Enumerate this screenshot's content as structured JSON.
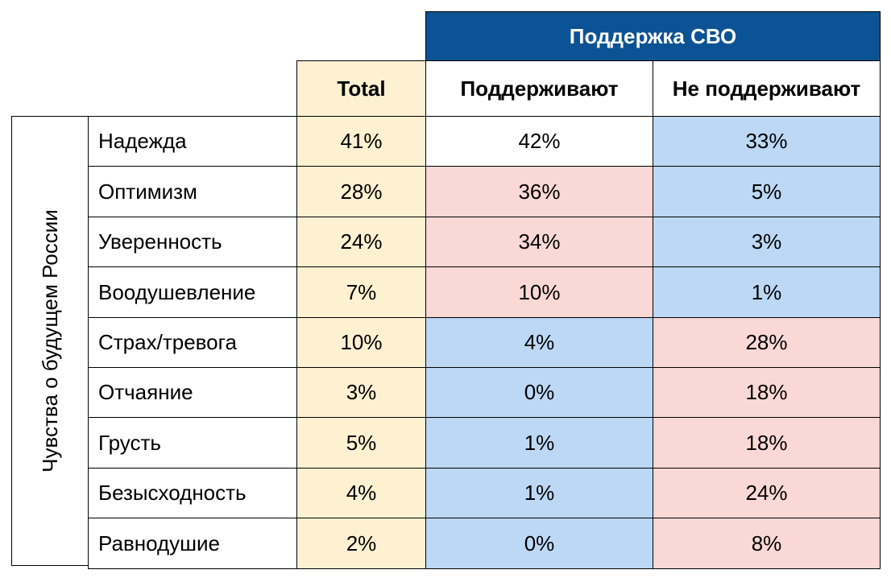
{
  "chart_data": {
    "type": "table",
    "group_header": "Поддержка СВО",
    "row_group_label": "Чувства о будущем России",
    "columns": [
      "Total",
      "Поддерживают",
      "Не поддерживают"
    ],
    "rows": [
      {
        "label": "Надежда",
        "values": [
          "41%",
          "42%",
          "33%"
        ],
        "shade": [
          "total",
          "white",
          "blue"
        ]
      },
      {
        "label": "Оптимизм",
        "values": [
          "28%",
          "36%",
          "5%"
        ],
        "shade": [
          "total",
          "pink",
          "blue"
        ]
      },
      {
        "label": "Уверенность",
        "values": [
          "24%",
          "34%",
          "3%"
        ],
        "shade": [
          "total",
          "pink",
          "blue"
        ]
      },
      {
        "label": "Воодушевление",
        "values": [
          "7%",
          "10%",
          "1%"
        ],
        "shade": [
          "total",
          "pink",
          "blue"
        ]
      },
      {
        "label": "Страх/тревога",
        "values": [
          "10%",
          "4%",
          "28%"
        ],
        "shade": [
          "total",
          "blue",
          "pink"
        ]
      },
      {
        "label": "Отчаяние",
        "values": [
          "3%",
          "0%",
          "18%"
        ],
        "shade": [
          "total",
          "blue",
          "pink"
        ]
      },
      {
        "label": "Грусть",
        "values": [
          "5%",
          "1%",
          "18%"
        ],
        "shade": [
          "total",
          "blue",
          "pink"
        ]
      },
      {
        "label": "Безысходность",
        "values": [
          "4%",
          "1%",
          "24%"
        ],
        "shade": [
          "total",
          "blue",
          "pink"
        ]
      },
      {
        "label": "Равнодушие",
        "values": [
          "2%",
          "0%",
          "8%"
        ],
        "shade": [
          "total",
          "blue",
          "pink"
        ]
      }
    ],
    "colors": {
      "header": "#0b5394",
      "total": "#fdf1d2",
      "high": "#f9d8d5",
      "low": "#bcd8f5"
    }
  }
}
